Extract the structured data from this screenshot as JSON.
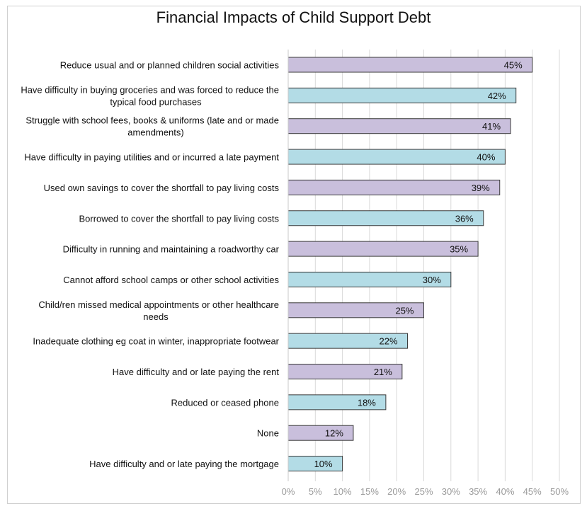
{
  "chart_data": {
    "type": "bar",
    "orientation": "horizontal",
    "title": "Financial Impacts of Child Support Debt",
    "xlabel": "",
    "ylabel": "",
    "xlim": [
      0,
      50
    ],
    "ticks": [
      "0%",
      "5%",
      "10%",
      "15%",
      "20%",
      "25%",
      "30%",
      "35%",
      "40%",
      "45%",
      "50%"
    ],
    "grid": true,
    "categories": [
      [
        "Reduce usual and or planned children social activities"
      ],
      [
        "Have difficulty in buying groceries and was forced to reduce the",
        "typical food purchases"
      ],
      [
        "Struggle with school fees, books & uniforms (late and or made",
        "amendments)"
      ],
      [
        "Have difficulty in paying utilities and or incurred a late payment"
      ],
      [
        "Used own savings to cover the shortfall to pay living costs"
      ],
      [
        "Borrowed to cover the shortfall to pay living costs"
      ],
      [
        "Difficulty in running and maintaining a roadworthy car"
      ],
      [
        "Cannot afford school camps or other school activities"
      ],
      [
        "Child/ren missed medical appointments or other healthcare",
        "needs"
      ],
      [
        "Inadequate clothing eg coat in winter, inappropriate footwear"
      ],
      [
        "Have difficulty and or late paying the rent"
      ],
      [
        "Reduced or ceased phone"
      ],
      [
        "None"
      ],
      [
        "Have difficulty and or late paying the mortgage"
      ]
    ],
    "values": [
      45,
      42,
      41,
      40,
      39,
      36,
      35,
      30,
      25,
      22,
      21,
      18,
      12,
      10
    ],
    "value_labels": [
      "45%",
      "42%",
      "41%",
      "40%",
      "39%",
      "36%",
      "35%",
      "30%",
      "25%",
      "22%",
      "21%",
      "18%",
      "12%",
      "10%"
    ],
    "colors": [
      "#c9bfdc",
      "#b3dce6"
    ],
    "bar_stroke": "#3a3a3a",
    "grid_color": "#d9d9d9"
  }
}
